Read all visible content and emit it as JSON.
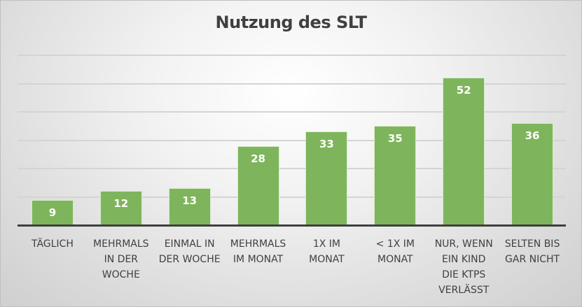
{
  "chart_data": {
    "type": "bar",
    "title": "Nutzung des SLT",
    "categories": [
      "TÄGLICH",
      "MEHRMALS IN DER WOCHE",
      "EINMAL IN DER WOCHE",
      "MEHRMALS IM MONAT",
      "1X IM MONAT",
      "< 1X IM MONAT",
      "NUR, WENN EIN KIND DIE KTPS VERLÄSST",
      "SELTEN BIS GAR NICHT"
    ],
    "values": [
      9,
      12,
      13,
      28,
      33,
      35,
      52,
      36
    ],
    "xlabel": "",
    "ylabel": "",
    "ylim": [
      0,
      60
    ],
    "grid": true,
    "legend": "none",
    "bar_color": "#7eb55c"
  },
  "labels": {
    "title": "Nutzung des SLT",
    "values": [
      "9",
      "12",
      "13",
      "28",
      "33",
      "35",
      "52",
      "36"
    ],
    "cat_lines": [
      [
        "TÄGLICH"
      ],
      [
        "MEHRMALS",
        "IN DER",
        "WOCHE"
      ],
      [
        "EINMAL IN",
        "DER WOCHE"
      ],
      [
        "MEHRMALS",
        "IM MONAT"
      ],
      [
        "1X IM",
        "MONAT"
      ],
      [
        "< 1X IM",
        "MONAT"
      ],
      [
        "NUR, WENN",
        "EIN KIND",
        "DIE KTPS",
        "VERLÄSST"
      ],
      [
        "SELTEN BIS",
        "GAR NICHT"
      ]
    ]
  }
}
